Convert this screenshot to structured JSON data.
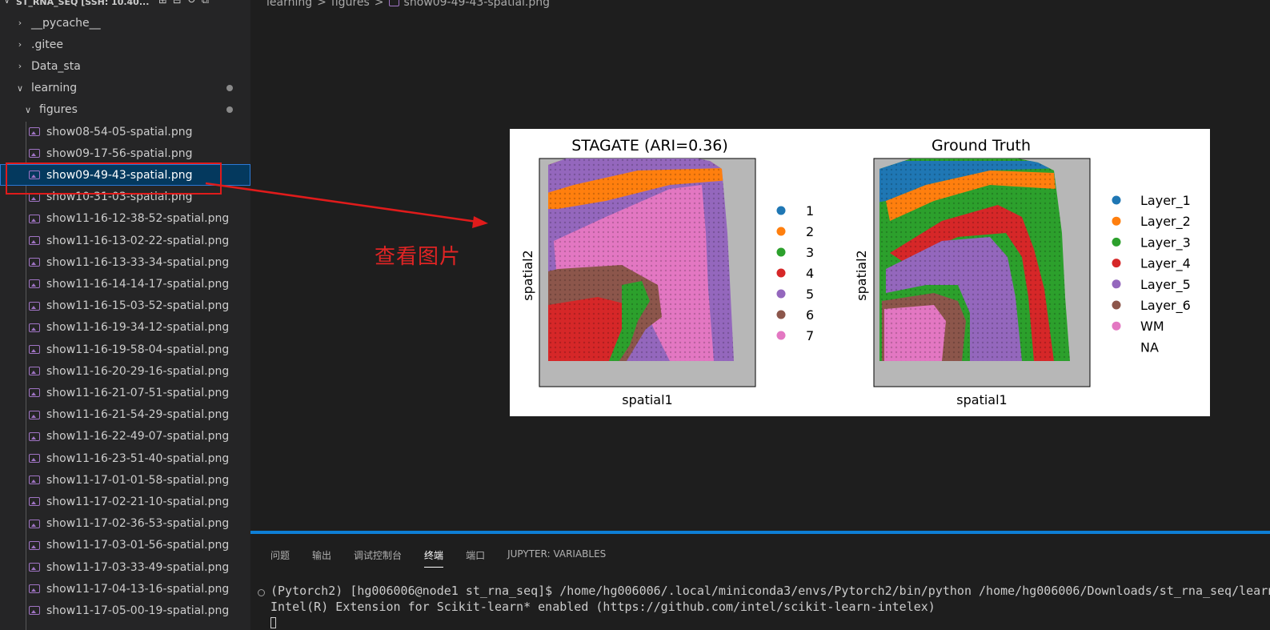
{
  "explorer": {
    "title": "ST_RNA_SEQ [SSH: 10.40...",
    "items": [
      {
        "label": "__pycache__",
        "type": "folder",
        "expanded": false
      },
      {
        "label": ".gitee",
        "type": "folder",
        "expanded": false
      },
      {
        "label": "Data_sta",
        "type": "folder",
        "expanded": false
      },
      {
        "label": "learning",
        "type": "folder",
        "expanded": true,
        "modified": true
      },
      {
        "label": "figures",
        "type": "folder",
        "expanded": true,
        "modified": true
      },
      {
        "label": "show08-54-05-spatial.png",
        "type": "image"
      },
      {
        "label": "show09-17-56-spatial.png",
        "type": "image"
      },
      {
        "label": "show09-49-43-spatial.png",
        "type": "image",
        "selected": true
      },
      {
        "label": "show10-31-03-spatial.png",
        "type": "image"
      },
      {
        "label": "show11-16-12-38-52-spatial.png",
        "type": "image"
      },
      {
        "label": "show11-16-13-02-22-spatial.png",
        "type": "image"
      },
      {
        "label": "show11-16-13-33-34-spatial.png",
        "type": "image"
      },
      {
        "label": "show11-16-14-14-17-spatial.png",
        "type": "image"
      },
      {
        "label": "show11-16-15-03-52-spatial.png",
        "type": "image"
      },
      {
        "label": "show11-16-19-34-12-spatial.png",
        "type": "image"
      },
      {
        "label": "show11-16-19-58-04-spatial.png",
        "type": "image"
      },
      {
        "label": "show11-16-20-29-16-spatial.png",
        "type": "image"
      },
      {
        "label": "show11-16-21-07-51-spatial.png",
        "type": "image"
      },
      {
        "label": "show11-16-21-54-29-spatial.png",
        "type": "image"
      },
      {
        "label": "show11-16-22-49-07-spatial.png",
        "type": "image"
      },
      {
        "label": "show11-16-23-51-40-spatial.png",
        "type": "image"
      },
      {
        "label": "show11-17-01-01-58-spatial.png",
        "type": "image"
      },
      {
        "label": "show11-17-02-21-10-spatial.png",
        "type": "image"
      },
      {
        "label": "show11-17-02-36-53-spatial.png",
        "type": "image"
      },
      {
        "label": "show11-17-03-01-56-spatial.png",
        "type": "image"
      },
      {
        "label": "show11-17-03-33-49-spatial.png",
        "type": "image"
      },
      {
        "label": "show11-17-04-13-16-spatial.png",
        "type": "image"
      },
      {
        "label": "show11-17-05-00-19-spatial.png",
        "type": "image"
      }
    ]
  },
  "breadcrumb": {
    "parts": [
      "learning",
      "figures",
      "show09-49-43-spatial.png"
    ],
    "separator": ">"
  },
  "annotation": {
    "label": "查看图片",
    "color": "#e02424"
  },
  "figure": {
    "left_title": "STAGATE (ARI=0.36)",
    "right_title": "Ground Truth",
    "xlabel": "spatial1",
    "ylabel": "spatial2",
    "left_legend": [
      {
        "label": "1",
        "color": "#1f77b4"
      },
      {
        "label": "2",
        "color": "#ff7f0e"
      },
      {
        "label": "3",
        "color": "#2ca02c"
      },
      {
        "label": "4",
        "color": "#d62728"
      },
      {
        "label": "5",
        "color": "#9467bd"
      },
      {
        "label": "6",
        "color": "#8c564b"
      },
      {
        "label": "7",
        "color": "#e377c2"
      }
    ],
    "right_legend": [
      {
        "label": "Layer_1",
        "color": "#1f77b4"
      },
      {
        "label": "Layer_2",
        "color": "#ff7f0e"
      },
      {
        "label": "Layer_3",
        "color": "#2ca02c"
      },
      {
        "label": "Layer_4",
        "color": "#d62728"
      },
      {
        "label": "Layer_5",
        "color": "#9467bd"
      },
      {
        "label": "Layer_6",
        "color": "#8c564b"
      },
      {
        "label": "WM",
        "color": "#e377c2"
      },
      {
        "label": "NA",
        "color": ""
      }
    ]
  },
  "panel": {
    "tabs": [
      "问题",
      "输出",
      "调试控制台",
      "终端",
      "端口",
      "JUPYTER: VARIABLES"
    ],
    "active_tab": "终端",
    "terminal_lines": [
      "(Pytorch2) [hg006006@node1 st_rna_seq]$ /home/hg006006/.local/miniconda3/envs/Pytorch2/bin/python /home/hg006006/Downloads/st_rna_seq/learn",
      "Intel(R) Extension for Scikit-learn* enabled (https://github.com/intel/scikit-learn-intelex)"
    ]
  }
}
